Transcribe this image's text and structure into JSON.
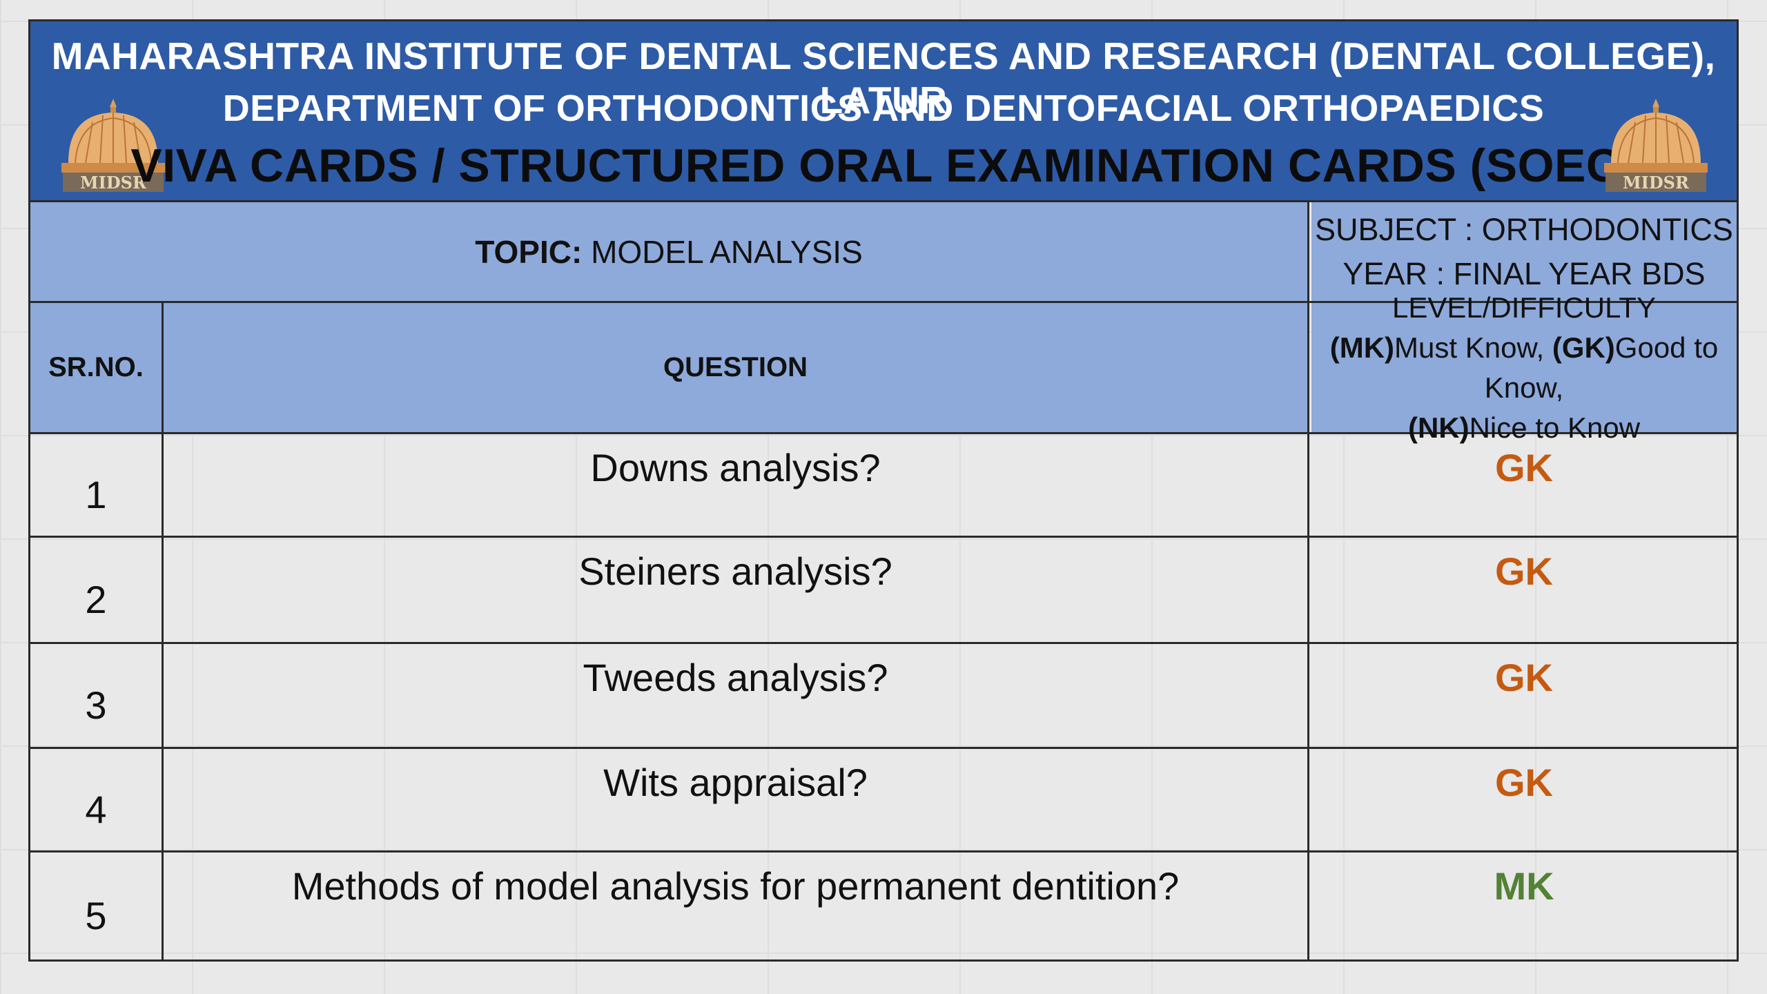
{
  "header": {
    "institute": "MAHARASHTRA INSTITUTE OF DENTAL SCIENCES AND RESEARCH (DENTAL COLLEGE), LATUR",
    "department": "DEPARTMENT OF ORTHODONTICS AND DENTOFACIAL ORTHOPAEDICS",
    "title": "VIVA CARDS / STRUCTURED ORAL EXAMINATION CARDS (SOEC)",
    "logo_text": "MIDSR"
  },
  "topic": {
    "label": "TOPIC:",
    "value": "MODEL ANALYSIS",
    "subject": "SUBJECT : ORTHODONTICS",
    "year": "YEAR : FINAL YEAR BDS"
  },
  "columns": {
    "srno": "SR.NO.",
    "question": "QUESTION",
    "level_title": "LEVEL/DIFFICULTY",
    "mk_code": "(MK)",
    "mk_text": "Must Know,",
    "gk_code": "(GK)",
    "gk_text": "Good to Know,",
    "nk_code": "(NK)",
    "nk_text": "Nice to Know"
  },
  "questions": [
    {
      "no": "1",
      "text": "Downs analysis?",
      "level": "GK"
    },
    {
      "no": "2",
      "text": "Steiners analysis?",
      "level": "GK"
    },
    {
      "no": "3",
      "text": "Tweeds analysis?",
      "level": "GK"
    },
    {
      "no": "4",
      "text": "Wits appraisal?",
      "level": "GK"
    },
    {
      "no": "5",
      "text": "Methods of model analysis for permanent dentition?",
      "level": "MK"
    }
  ],
  "colors": {
    "header_bg": "#2e5ba6",
    "table_head_bg": "#8eaadb",
    "gk": "#c55a11",
    "mk": "#538135"
  }
}
